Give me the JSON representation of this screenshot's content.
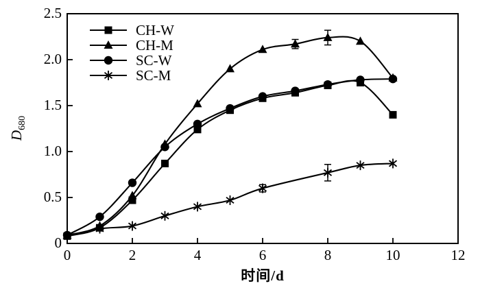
{
  "figure": {
    "background": "#ffffff",
    "line_color": "#000000"
  },
  "chart_data": {
    "type": "line",
    "title": "",
    "xlabel": "时间/d",
    "ylabel": "D",
    "ylabel_subscript": "680",
    "xlim": [
      0,
      12
    ],
    "ylim": [
      0,
      2.5
    ],
    "grid": false,
    "legend_position": "upper-left-inside",
    "x_ticks": [
      0,
      2,
      4,
      6,
      8,
      10,
      12
    ],
    "x_tick_labels": [
      "0",
      "2",
      "4",
      "6",
      "8",
      "10",
      "12"
    ],
    "y_ticks": [
      2.5,
      2.0,
      1.5,
      1.0,
      0.5,
      0
    ],
    "y_tick_labels": [
      "2.5",
      "2.0",
      "1.5",
      "1.0",
      "0.5",
      "0"
    ],
    "series": [
      {
        "name": "CH-W",
        "marker": "square",
        "color": "#000000",
        "x": [
          0,
          1,
          2,
          3,
          4,
          5,
          6,
          7,
          8,
          9,
          10
        ],
        "y": [
          0.08,
          0.17,
          0.47,
          0.87,
          1.24,
          1.45,
          1.58,
          1.64,
          1.72,
          1.75,
          1.4
        ],
        "error_bars": []
      },
      {
        "name": "CH-M",
        "marker": "triangle",
        "color": "#000000",
        "x": [
          0,
          1,
          2,
          3,
          4,
          5,
          6,
          7,
          8,
          9,
          10
        ],
        "y": [
          0.09,
          0.19,
          0.52,
          1.08,
          1.52,
          1.9,
          2.11,
          2.17,
          2.24,
          2.2,
          1.8
        ],
        "error_bars": [
          {
            "x": 7,
            "value": 0.05
          },
          {
            "x": 8,
            "value": 0.08
          }
        ]
      },
      {
        "name": "SC-W",
        "marker": "circle",
        "color": "#000000",
        "x": [
          0,
          1,
          2,
          3,
          4,
          5,
          6,
          7,
          8,
          9,
          10
        ],
        "y": [
          0.09,
          0.29,
          0.66,
          1.05,
          1.3,
          1.47,
          1.6,
          1.66,
          1.73,
          1.78,
          1.79
        ],
        "error_bars": []
      },
      {
        "name": "SC-M",
        "marker": "star",
        "color": "#000000",
        "x": [
          0,
          1,
          2,
          3,
          4,
          5,
          6,
          8,
          9,
          10
        ],
        "y": [
          0.08,
          0.16,
          0.19,
          0.3,
          0.4,
          0.47,
          0.6,
          0.77,
          0.85,
          0.87
        ],
        "error_bars": [
          {
            "x": 6,
            "value": 0.04
          },
          {
            "x": 8,
            "value": 0.09
          }
        ]
      }
    ]
  }
}
